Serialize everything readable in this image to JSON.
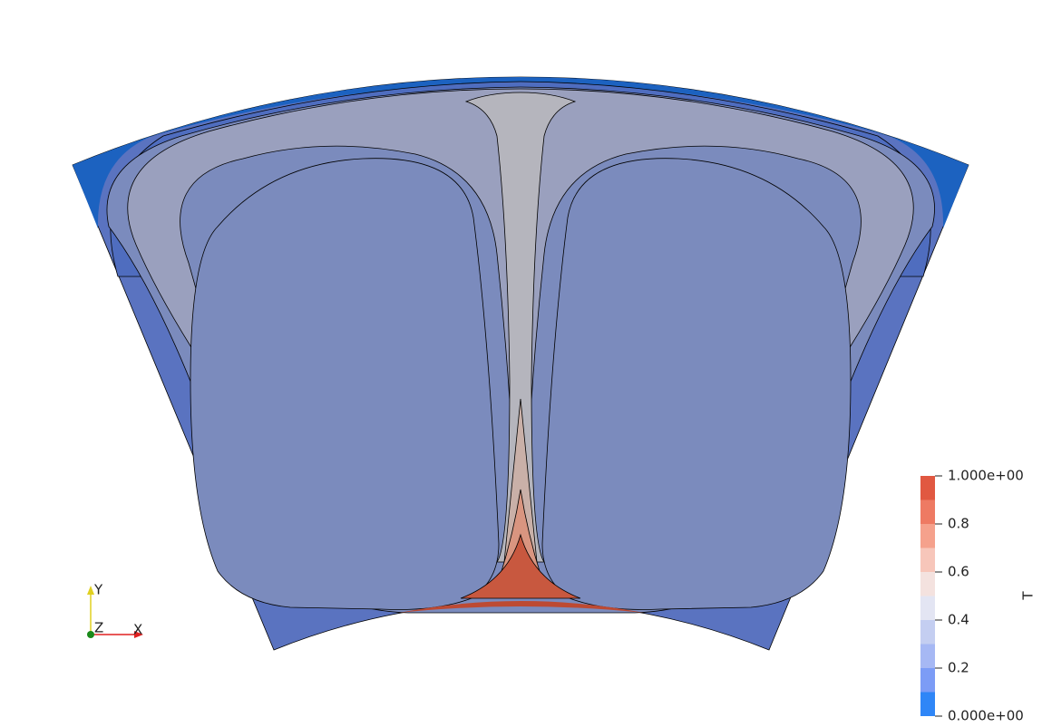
{
  "axes": {
    "y_label": "Y",
    "z_label": "Z",
    "x_label": "X"
  },
  "colorbar": {
    "title": "T",
    "labels": [
      "1.000e+00",
      "0.8",
      "0.6",
      "0.4",
      "0.2",
      "0.000e+00"
    ]
  }
}
